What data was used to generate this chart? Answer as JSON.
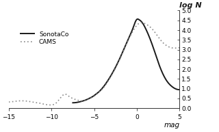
{
  "ylabel": "log N",
  "xlabel": "mag",
  "xlim": [
    -15,
    5
  ],
  "ylim": [
    0.0,
    5.0
  ],
  "xticks": [
    -15,
    -10,
    -5,
    0,
    5
  ],
  "yticks": [
    0.0,
    0.5,
    1.0,
    1.5,
    2.0,
    2.5,
    3.0,
    3.5,
    4.0,
    4.5,
    5.0
  ],
  "legend_sonotaco": "SonotaCo",
  "legend_cams": "CAMS",
  "bg_color": "#ffffff",
  "line_color": "#1a1a1a",
  "dotted_color": "#888888",
  "sono_x": [
    -7.5,
    -7.0,
    -6.5,
    -6.0,
    -5.5,
    -5.0,
    -4.8,
    -4.5,
    -4.2,
    -4.0,
    -3.5,
    -3.0,
    -2.5,
    -2.0,
    -1.5,
    -1.0,
    -0.5,
    0.0,
    0.3,
    0.5,
    1.0,
    1.5,
    2.0,
    2.5,
    3.0,
    3.5,
    4.0,
    4.5,
    5.0
  ],
  "sono_y": [
    0.28,
    0.3,
    0.35,
    0.42,
    0.52,
    0.65,
    0.72,
    0.82,
    0.95,
    1.05,
    1.35,
    1.7,
    2.1,
    2.55,
    3.05,
    3.55,
    4.05,
    4.55,
    4.52,
    4.45,
    4.1,
    3.6,
    3.0,
    2.35,
    1.8,
    1.4,
    1.15,
    1.0,
    0.95
  ],
  "cams_x": [
    -15.0,
    -14.5,
    -14.0,
    -13.5,
    -13.0,
    -12.5,
    -12.0,
    -11.5,
    -11.0,
    -10.8,
    -10.5,
    -10.0,
    -9.5,
    -9.0,
    -8.7,
    -8.5,
    -8.0,
    -7.5,
    -7.0,
    -6.5,
    -6.0,
    -5.5,
    -5.0,
    -4.5,
    -4.0,
    -3.5,
    -3.0,
    -2.5,
    -2.0,
    -1.5,
    -1.0,
    -0.5,
    0.0,
    0.5,
    1.0,
    1.5,
    2.0,
    2.5,
    3.0,
    3.5,
    4.0,
    4.5,
    5.0
  ],
  "cams_y": [
    0.32,
    0.34,
    0.37,
    0.38,
    0.37,
    0.34,
    0.3,
    0.27,
    0.22,
    0.2,
    0.18,
    0.17,
    0.25,
    0.5,
    0.65,
    0.72,
    0.62,
    0.5,
    0.42,
    0.38,
    0.4,
    0.5,
    0.62,
    0.8,
    1.0,
    1.3,
    1.65,
    2.05,
    2.5,
    3.0,
    3.5,
    3.92,
    4.25,
    4.38,
    4.32,
    4.18,
    3.95,
    3.65,
    3.38,
    3.2,
    3.1,
    3.08,
    3.1
  ]
}
